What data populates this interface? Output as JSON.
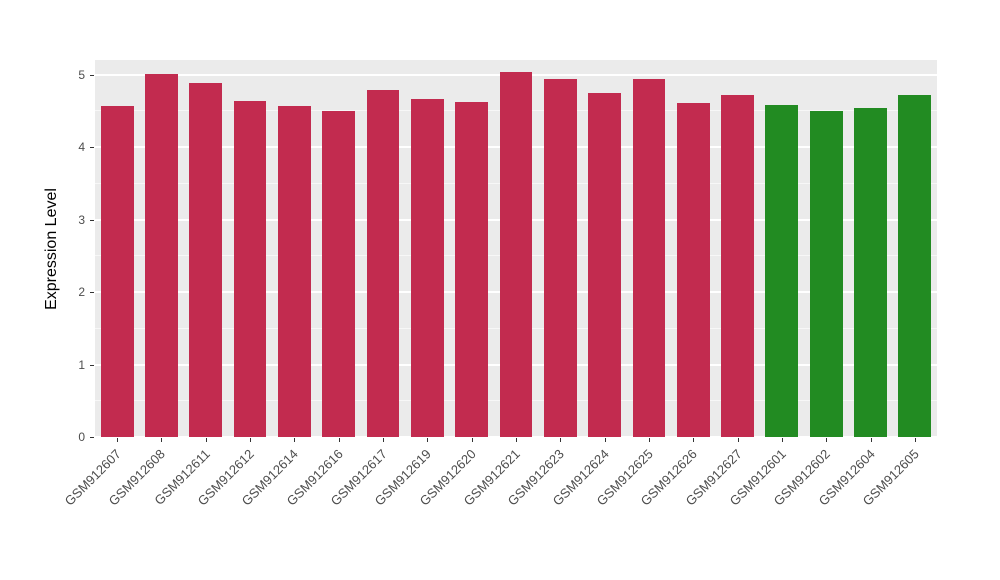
{
  "chart_data": {
    "type": "bar",
    "title": "",
    "xlabel": "",
    "ylabel": "Expression Level",
    "categories": [
      "GSM912607",
      "GSM912608",
      "GSM912611",
      "GSM912612",
      "GSM912614",
      "GSM912616",
      "GSM912617",
      "GSM912619",
      "GSM912620",
      "GSM912621",
      "GSM912623",
      "GSM912624",
      "GSM912625",
      "GSM912626",
      "GSM912627",
      "GSM912601",
      "GSM912602",
      "GSM912604",
      "GSM912605"
    ],
    "values": [
      4.56,
      5.01,
      4.88,
      4.64,
      4.57,
      4.5,
      4.78,
      4.66,
      4.62,
      5.04,
      4.94,
      4.75,
      4.94,
      4.61,
      4.72,
      4.58,
      4.5,
      4.54,
      4.72
    ],
    "colors": [
      "#C22B4F",
      "#C22B4F",
      "#C22B4F",
      "#C22B4F",
      "#C22B4F",
      "#C22B4F",
      "#C22B4F",
      "#C22B4F",
      "#C22B4F",
      "#C22B4F",
      "#C22B4F",
      "#C22B4F",
      "#C22B4F",
      "#C22B4F",
      "#C22B4F",
      "#228B22",
      "#228B22",
      "#228B22",
      "#228B22"
    ],
    "group_colors": {
      "red_group": "#C22B4F",
      "green_group": "#228B22"
    },
    "ylim": [
      0,
      5.2
    ],
    "yticks": [
      0,
      1,
      2,
      3,
      4,
      5
    ],
    "grid": true,
    "legend": "none",
    "panel_background": "#EBEBEB",
    "grid_color": "#FFFFFF"
  }
}
